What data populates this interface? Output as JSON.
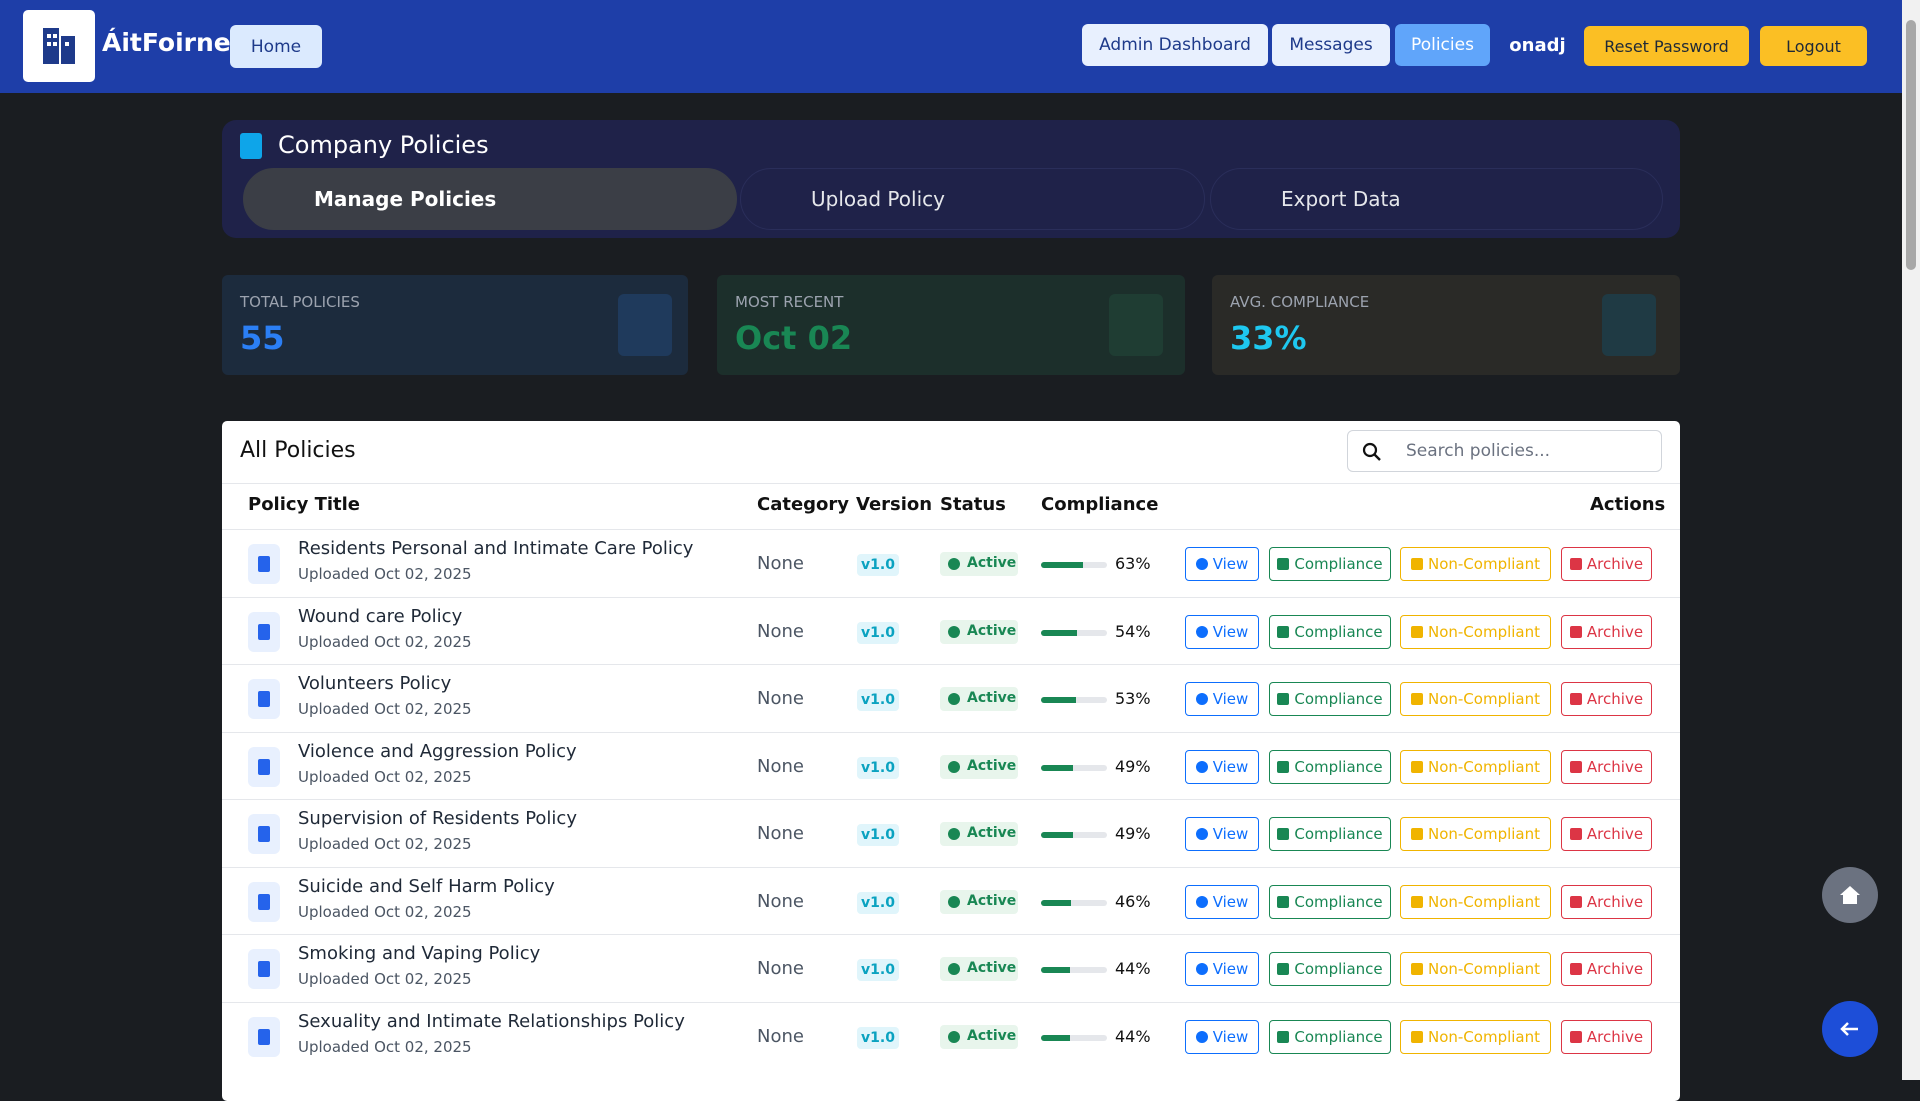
{
  "header": {
    "brand": "ÁitFoirne",
    "home": "Home",
    "nav": [
      "Admin Dashboard",
      "Messages",
      "Policies"
    ],
    "user": "onadj",
    "reset": "Reset Password",
    "logout": "Logout"
  },
  "policies_panel": {
    "title": "Company Policies",
    "tabs": [
      "Manage Policies",
      "Upload Policy",
      "Export Data"
    ]
  },
  "stats": [
    {
      "label": "TOTAL POLICIES",
      "value": "55"
    },
    {
      "label": "MOST RECENT",
      "value": "Oct 02"
    },
    {
      "label": "AVG. COMPLIANCE",
      "value": "33%"
    }
  ],
  "table": {
    "title": "All Policies",
    "search_placeholder": "Search policies...",
    "columns": [
      "Policy Title",
      "Category",
      "Version",
      "Status",
      "Compliance",
      "Actions"
    ],
    "actions": [
      "View",
      "Compliance",
      "Non-Compliant",
      "Archive"
    ],
    "rows": [
      {
        "title": "Residents Personal and Intimate Care Policy",
        "uploaded": "Uploaded Oct 02, 2025",
        "category": "None",
        "version": "v1.0",
        "status": "Active",
        "compliance": {
          "value": 63,
          "label": "63%"
        }
      },
      {
        "title": "Wound care Policy",
        "uploaded": "Uploaded Oct 02, 2025",
        "category": "None",
        "version": "v1.0",
        "status": "Active",
        "compliance": {
          "value": 54,
          "label": "54%"
        }
      },
      {
        "title": "Volunteers Policy",
        "uploaded": "Uploaded Oct 02, 2025",
        "category": "None",
        "version": "v1.0",
        "status": "Active",
        "compliance": {
          "value": 53,
          "label": "53%"
        }
      },
      {
        "title": "Violence and Aggression Policy",
        "uploaded": "Uploaded Oct 02, 2025",
        "category": "None",
        "version": "v1.0",
        "status": "Active",
        "compliance": {
          "value": 49,
          "label": "49%"
        }
      },
      {
        "title": "Supervision of Residents Policy",
        "uploaded": "Uploaded Oct 02, 2025",
        "category": "None",
        "version": "v1.0",
        "status": "Active",
        "compliance": {
          "value": 49,
          "label": "49%"
        }
      },
      {
        "title": "Suicide and Self Harm Policy",
        "uploaded": "Uploaded Oct 02, 2025",
        "category": "None",
        "version": "v1.0",
        "status": "Active",
        "compliance": {
          "value": 46,
          "label": "46%"
        }
      },
      {
        "title": "Smoking and Vaping Policy",
        "uploaded": "Uploaded Oct 02, 2025",
        "category": "None",
        "version": "v1.0",
        "status": "Active",
        "compliance": {
          "value": 44,
          "label": "44%"
        }
      },
      {
        "title": "Sexuality and Intimate Relationships Policy",
        "uploaded": "Uploaded Oct 02, 2025",
        "category": "None",
        "version": "v1.0",
        "status": "Active",
        "compliance": {
          "value": 44,
          "label": "44%"
        }
      }
    ]
  }
}
